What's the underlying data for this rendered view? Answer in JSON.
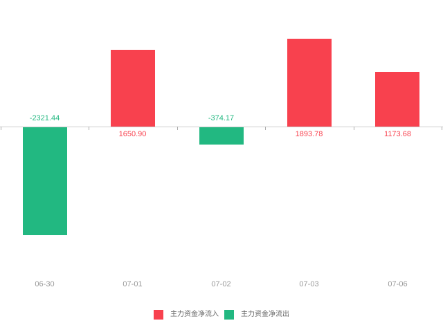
{
  "chart_data": {
    "type": "bar",
    "title": "",
    "xlabel": "",
    "ylabel": "",
    "categories": [
      "06-30",
      "07-01",
      "07-02",
      "07-03",
      "07-06"
    ],
    "values": [
      -2321.44,
      1650.9,
      -374.17,
      1893.78,
      1173.68
    ],
    "value_labels": [
      "-2321.44",
      "1650.90",
      "-374.17",
      "1893.78",
      "1173.68"
    ],
    "ylim": [
      -2450,
      2100
    ],
    "grid": false,
    "legend_position": "bottom-center",
    "legend": [
      {
        "label": "主力资金净流入",
        "applies_to": "positive",
        "color": "#f8414e"
      },
      {
        "label": "主力资金净流出",
        "applies_to": "negative",
        "color": "#22b881"
      }
    ],
    "colors": {
      "positive": "#f8414e",
      "negative": "#22b881",
      "axis_line": "#cccccc",
      "tick": "#aaaaaa",
      "category_label": "#999999",
      "legend_text": "#666666"
    }
  }
}
